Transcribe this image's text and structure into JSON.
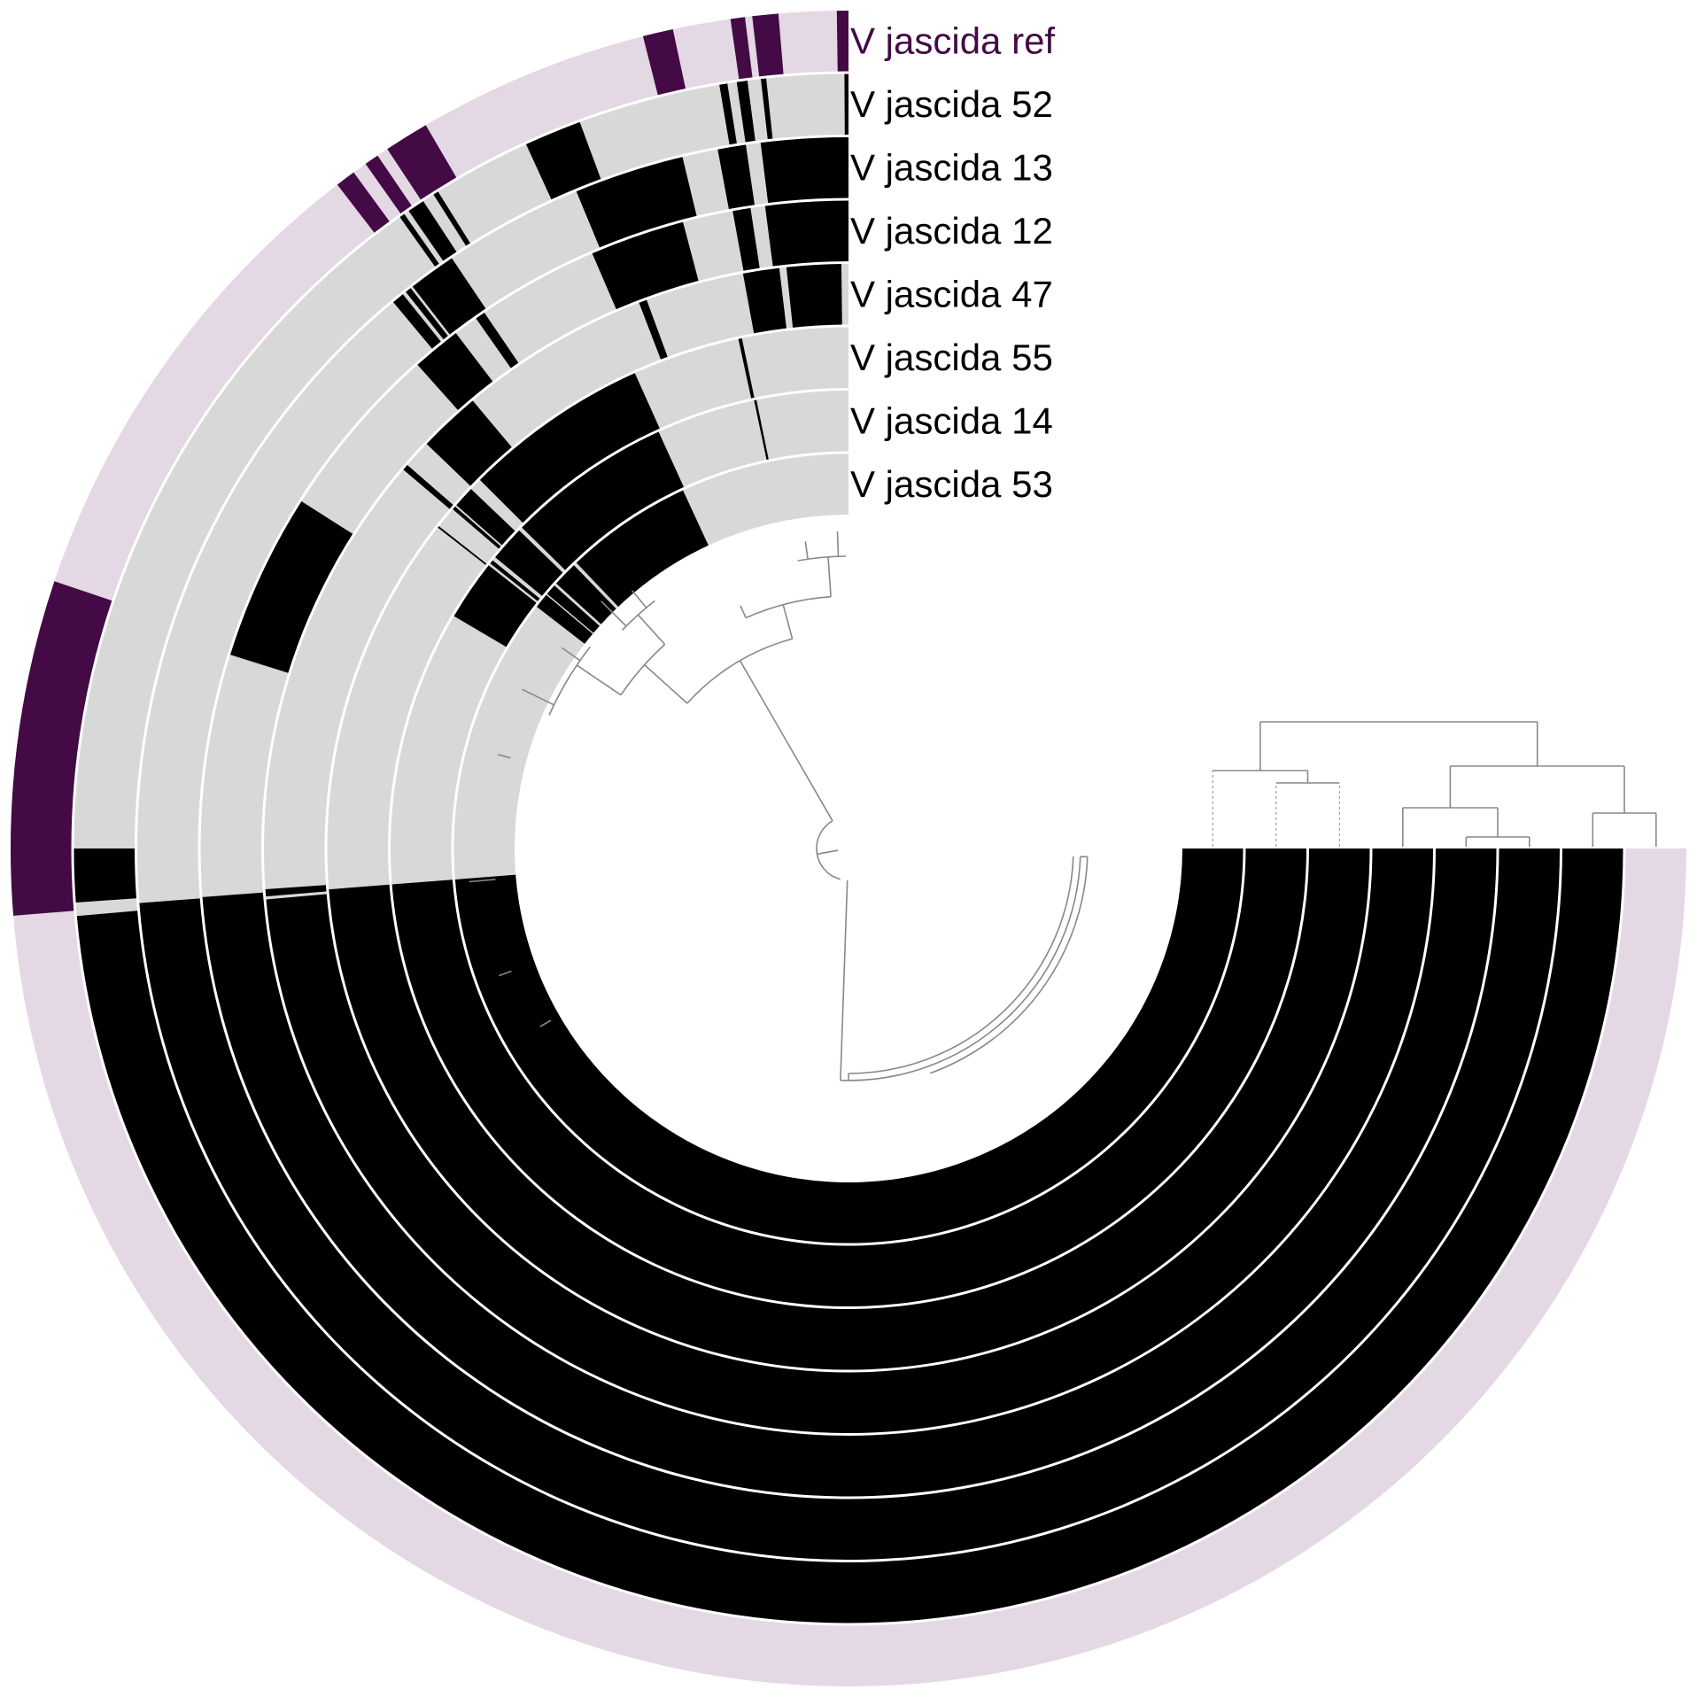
{
  "chart_data": {
    "type": "circular-heatmap",
    "title": "",
    "span_degrees": 270,
    "colors": {
      "ref_present": "#440a45",
      "ref_absent": "#e4d8e4",
      "present": "#000000",
      "absent": "#d8d8d8",
      "label_ref": "#440a45",
      "label": "#000000",
      "tree": "#888888"
    },
    "rings": [
      {
        "name": "V jascida ref",
        "is_ref": true,
        "present": [
          [
            0,
            0.8
          ],
          [
            4.8,
            6.6
          ],
          [
            7.1,
            8.1
          ],
          [
            12.1,
            14.2
          ],
          [
            30.3,
            33.4
          ],
          [
            34.2,
            35.2
          ],
          [
            36.2,
            37.6
          ],
          [
            71.4,
            94.6
          ]
        ]
      },
      {
        "name": "V jascida 52",
        "is_ref": false,
        "present": [
          [
            0,
            0.3
          ],
          [
            6.1,
            6.5
          ],
          [
            7.5,
            8.3
          ],
          [
            9.0,
            9.6
          ],
          [
            20.3,
            24.6
          ],
          [
            32.0,
            32.4
          ],
          [
            33.3,
            34.6
          ],
          [
            35.0,
            35.4
          ],
          [
            90.0,
            94.0
          ],
          [
            95.0,
            270
          ]
        ]
      },
      {
        "name": "V jascida 13",
        "is_ref": false,
        "present": [
          [
            0,
            7.1
          ],
          [
            8.3,
            10.6
          ],
          [
            13.5,
            22.5
          ],
          [
            33.9,
            37.8
          ],
          [
            38.0,
            38.5
          ],
          [
            38.8,
            39.8
          ],
          [
            94.4,
            270
          ]
        ]
      },
      {
        "name": "V jascida 12",
        "is_ref": false,
        "present": [
          [
            0,
            7.4
          ],
          [
            8.7,
            10.3
          ],
          [
            14.8,
            23.3
          ],
          [
            34.2,
            35.1
          ],
          [
            37.3,
            41.7
          ],
          [
            57.6,
            72.6
          ],
          [
            94.3,
            270
          ]
        ]
      },
      {
        "name": "V jascida 47",
        "is_ref": false,
        "present": [
          [
            0.7,
            6.1
          ],
          [
            6.8,
            10.4
          ],
          [
            20.2,
            21.0
          ],
          [
            40.0,
            46.2
          ],
          [
            49.0,
            49.6
          ],
          [
            94.0,
            94.7
          ],
          [
            95.0,
            270
          ]
        ]
      },
      {
        "name": "V jascida 55",
        "is_ref": false,
        "present": [
          [
            11.8,
            12.2
          ],
          [
            24.2,
            45.0
          ],
          [
            46.4,
            48.8
          ],
          [
            49.0,
            49.4
          ],
          [
            51.8,
            52.0
          ],
          [
            94.5,
            270
          ]
        ]
      },
      {
        "name": "V jascida 14",
        "is_ref": false,
        "present": [
          [
            11.6,
            11.9
          ],
          [
            24.5,
            45.5
          ],
          [
            46.0,
            50.5
          ],
          [
            51.0,
            51.5
          ],
          [
            51.8,
            59.5
          ],
          [
            94.5,
            270
          ]
        ]
      },
      {
        "name": "V jascida 53",
        "is_ref": false,
        "present": [
          [
            24.8,
            43.6
          ],
          [
            44.1,
            47.8
          ],
          [
            48.2,
            49.8
          ],
          [
            50.0,
            52.2
          ],
          [
            94.5,
            270
          ]
        ]
      }
    ]
  }
}
